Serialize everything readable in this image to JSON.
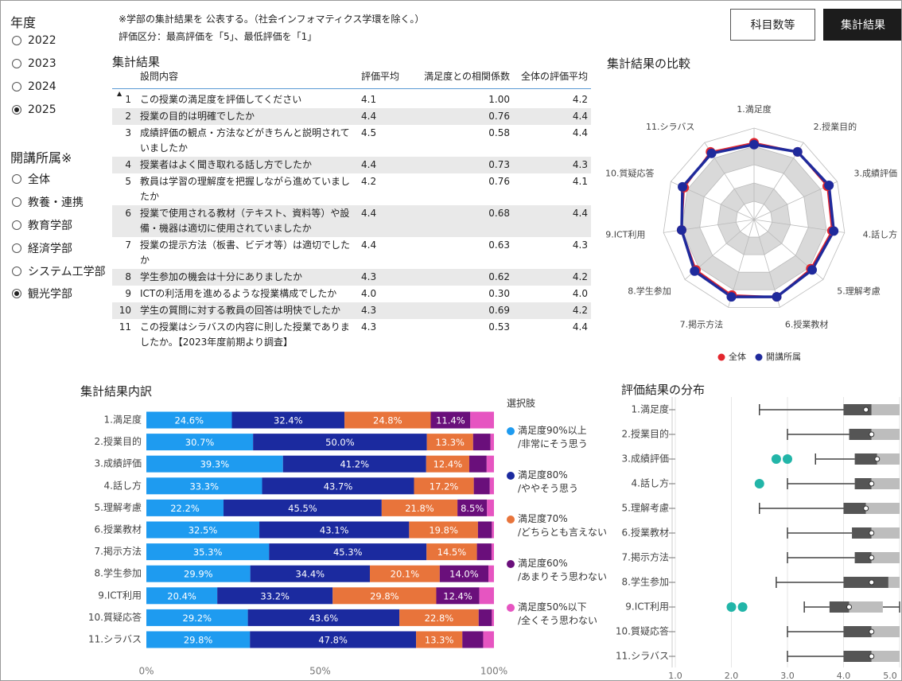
{
  "filters": [
    {
      "title": "年度",
      "options": [
        "2022",
        "2023",
        "2024",
        "2025"
      ],
      "selected": 3
    },
    {
      "title": "開講所属※",
      "options": [
        "全体",
        "教養・連携",
        "教育学部",
        "経済学部",
        "システム工学部",
        "観光学部"
      ],
      "selected": 5
    }
  ],
  "notes": [
    "※学部の集計結果を 公表する。（社会インフォマティクス学環を除く。）",
    "評価区分：最高評価を「5」、最低評価を「1」"
  ],
  "tabs": {
    "items": [
      "科目数等",
      "集計結果"
    ],
    "active": 1
  },
  "table": {
    "title": "集計結果",
    "headers": [
      "設問内容",
      "評価平均",
      "満足度との相関係数",
      "全体の評価平均"
    ],
    "rows": [
      [
        "1",
        "この授業の満足度を評価してください",
        "4.1",
        "1.00",
        "4.2"
      ],
      [
        "2",
        "授業の目的は明確でしたか",
        "4.4",
        "0.76",
        "4.4"
      ],
      [
        "3",
        "成績評価の観点・方法などがきちんと説明されていましたか",
        "4.5",
        "0.58",
        "4.4"
      ],
      [
        "4",
        "授業者はよく聞き取れる話し方でしたか",
        "4.4",
        "0.73",
        "4.3"
      ],
      [
        "5",
        "教員は学習の理解度を把握しながら進めていましたか",
        "4.2",
        "0.76",
        "4.1"
      ],
      [
        "6",
        "授業で使用される教材（テキスト、資料等）や設備・機器は適切に使用されていましたか",
        "4.4",
        "0.68",
        "4.4"
      ],
      [
        "7",
        "授業の提示方法（板書、ビデオ等）は適切でしたか",
        "4.4",
        "0.63",
        "4.3"
      ],
      [
        "8",
        "学生参加の機会は十分にありましたか",
        "4.3",
        "0.62",
        "4.2"
      ],
      [
        "9",
        "ICTの利活用を進めるような授業構成でしたか",
        "4.0",
        "0.30",
        "4.0"
      ],
      [
        "10",
        "学生の質問に対する教員の回答は明快でしたか",
        "4.3",
        "0.69",
        "4.2"
      ],
      [
        "11",
        "この授業はシラバスの内容に則した授業でありましたか。【2023年度前期より調査】",
        "4.3",
        "0.53",
        "4.4"
      ]
    ]
  },
  "chart_data": [
    {
      "type": "radar",
      "title": "集計結果の比較",
      "categories": [
        "1.満足度",
        "2.授業目的",
        "3.成績評価",
        "4.話し方",
        "5.理解考慮",
        "6.授業教材",
        "7.掲示方法",
        "8.学生参加",
        "9.ICT利用",
        "10.質疑応答",
        "11.シラバス"
      ],
      "series": [
        {
          "name": "全体",
          "color": "#e3262d",
          "values": [
            4.2,
            4.4,
            4.4,
            4.3,
            4.1,
            4.4,
            4.3,
            4.2,
            4.0,
            4.2,
            4.4
          ]
        },
        {
          "name": "開講所属",
          "color": "#1f2a9c",
          "values": [
            4.1,
            4.4,
            4.5,
            4.4,
            4.2,
            4.4,
            4.4,
            4.3,
            4.0,
            4.3,
            4.3
          ]
        }
      ],
      "rlim": [
        0,
        5
      ]
    },
    {
      "type": "stacked_bar_h",
      "title": "集計結果内訳",
      "legend_title": "選択肢",
      "categories": [
        "1.満足度",
        "2.授業目的",
        "3.成績評価",
        "4.話し方",
        "5.理解考慮",
        "6.授業教材",
        "7.掲示方法",
        "8.学生参加",
        "9.ICT利用",
        "10.質疑応答",
        "11.シラバス"
      ],
      "series": [
        {
          "name": "満足度90%以上\n/非常にそう思う",
          "color": "#1e9bf0",
          "values": [
            24.6,
            30.7,
            39.3,
            33.3,
            22.2,
            32.5,
            35.3,
            29.9,
            20.4,
            29.2,
            29.8
          ],
          "value_labels": [
            "24.6%",
            "30.7%",
            "39.3%",
            "33.3%",
            "22.2%",
            "32.5%",
            "35.3%",
            "29.9%",
            "20.4%",
            "29.2%",
            "29.8%"
          ]
        },
        {
          "name": "満足度80%\n/ややそう思う",
          "color": "#1b2a9f",
          "values": [
            32.4,
            50.0,
            41.2,
            43.7,
            45.5,
            43.1,
            45.3,
            34.4,
            33.2,
            43.6,
            47.8
          ],
          "value_labels": [
            "32.4%",
            "50.0%",
            "41.2%",
            "43.7%",
            "45.5%",
            "43.1%",
            "45.3%",
            "34.4%",
            "33.2%",
            "43.6%",
            "47.8%"
          ]
        },
        {
          "name": "満足度70%\n/どちらとも言えない",
          "color": "#e8743b",
          "values": [
            24.8,
            13.3,
            12.4,
            17.2,
            21.8,
            19.8,
            14.5,
            20.1,
            29.8,
            22.8,
            13.3
          ],
          "value_labels": [
            "24.8%",
            "13.3%",
            "12.4%",
            "17.2%",
            "21.8%",
            "19.8%",
            "14.5%",
            "20.1%",
            "29.8%",
            "22.8%",
            "13.3%"
          ]
        },
        {
          "name": "満足度60%\n/あまりそう思わない",
          "color": "#6a0f7b",
          "values": [
            11.4,
            5.0,
            5.0,
            4.6,
            8.5,
            4.0,
            4.2,
            14.0,
            12.4,
            3.8,
            6.0
          ],
          "value_labels": [
            "11.4%",
            null,
            null,
            null,
            "8.5%",
            null,
            null,
            "14.0%",
            "12.4%",
            null,
            null
          ]
        },
        {
          "name": "満足度50%以下\n/全くそう思わない",
          "color": "#e655c1",
          "values": [
            6.8,
            1.0,
            2.1,
            1.2,
            2.0,
            0.6,
            0.7,
            1.6,
            4.2,
            0.6,
            3.1
          ],
          "value_labels": [
            null,
            null,
            null,
            null,
            null,
            null,
            null,
            null,
            null,
            null,
            null
          ]
        }
      ],
      "xlim": [
        0,
        100
      ],
      "xticks": [
        {
          "value": 0,
          "label": "0%"
        },
        {
          "value": 50,
          "label": "50%"
        },
        {
          "value": 100,
          "label": "100%"
        }
      ]
    },
    {
      "type": "box",
      "title": "評価結果の分布",
      "categories": [
        "1.満足度",
        "2.授業目的",
        "3.成績評価",
        "4.話し方",
        "5.理解考慮",
        "6.授業教材",
        "7.掲示方法",
        "8.学生参加",
        "9.ICT利用",
        "10.質疑応答",
        "11.シラバス"
      ],
      "boxes": [
        {
          "min": 2.5,
          "q1": 4.0,
          "median": 4.5,
          "q3": 5.0,
          "max": 5.0,
          "mean": 4.4,
          "outliers": []
        },
        {
          "min": 3.0,
          "q1": 4.1,
          "median": 4.5,
          "q3": 5.0,
          "max": 5.0,
          "mean": 4.5,
          "outliers": []
        },
        {
          "min": 3.5,
          "q1": 4.2,
          "median": 4.6,
          "q3": 5.0,
          "max": 5.0,
          "mean": 4.6,
          "outliers": [
            2.8,
            3.0
          ]
        },
        {
          "min": 3.0,
          "q1": 4.2,
          "median": 4.5,
          "q3": 5.0,
          "max": 5.0,
          "mean": 4.5,
          "outliers": [
            2.5
          ]
        },
        {
          "min": 2.5,
          "q1": 4.0,
          "median": 4.4,
          "q3": 5.0,
          "max": 5.0,
          "mean": 4.4,
          "outliers": []
        },
        {
          "min": 3.0,
          "q1": 4.15,
          "median": 4.5,
          "q3": 5.0,
          "max": 5.0,
          "mean": 4.5,
          "outliers": []
        },
        {
          "min": 3.0,
          "q1": 4.2,
          "median": 4.5,
          "q3": 5.0,
          "max": 5.0,
          "mean": 4.5,
          "outliers": []
        },
        {
          "min": 2.8,
          "q1": 4.0,
          "median": 4.8,
          "q3": 5.0,
          "max": 5.0,
          "mean": 4.5,
          "outliers": []
        },
        {
          "min": 3.3,
          "q1": 3.75,
          "median": 4.1,
          "q3": 4.7,
          "max": 5.0,
          "mean": 4.1,
          "outliers": [
            2.0,
            2.2
          ]
        },
        {
          "min": 3.0,
          "q1": 4.0,
          "median": 4.5,
          "q3": 5.0,
          "max": 5.0,
          "mean": 4.5,
          "outliers": []
        },
        {
          "min": 3.0,
          "q1": 4.0,
          "median": 4.5,
          "q3": 5.0,
          "max": 5.0,
          "mean": 4.5,
          "outliers": []
        }
      ],
      "colors": {
        "lower": "#555555",
        "upper": "#bdbdbd",
        "outlier": "#22b5a8"
      },
      "xlim": [
        1,
        5
      ],
      "xticks": [
        {
          "value": 1,
          "label": "1.0"
        },
        {
          "value": 2,
          "label": "2.0"
        },
        {
          "value": 3,
          "label": "3.0"
        },
        {
          "value": 4,
          "label": "4.0"
        },
        {
          "value": 5,
          "label": "5.0"
        }
      ],
      "grid": true
    }
  ]
}
